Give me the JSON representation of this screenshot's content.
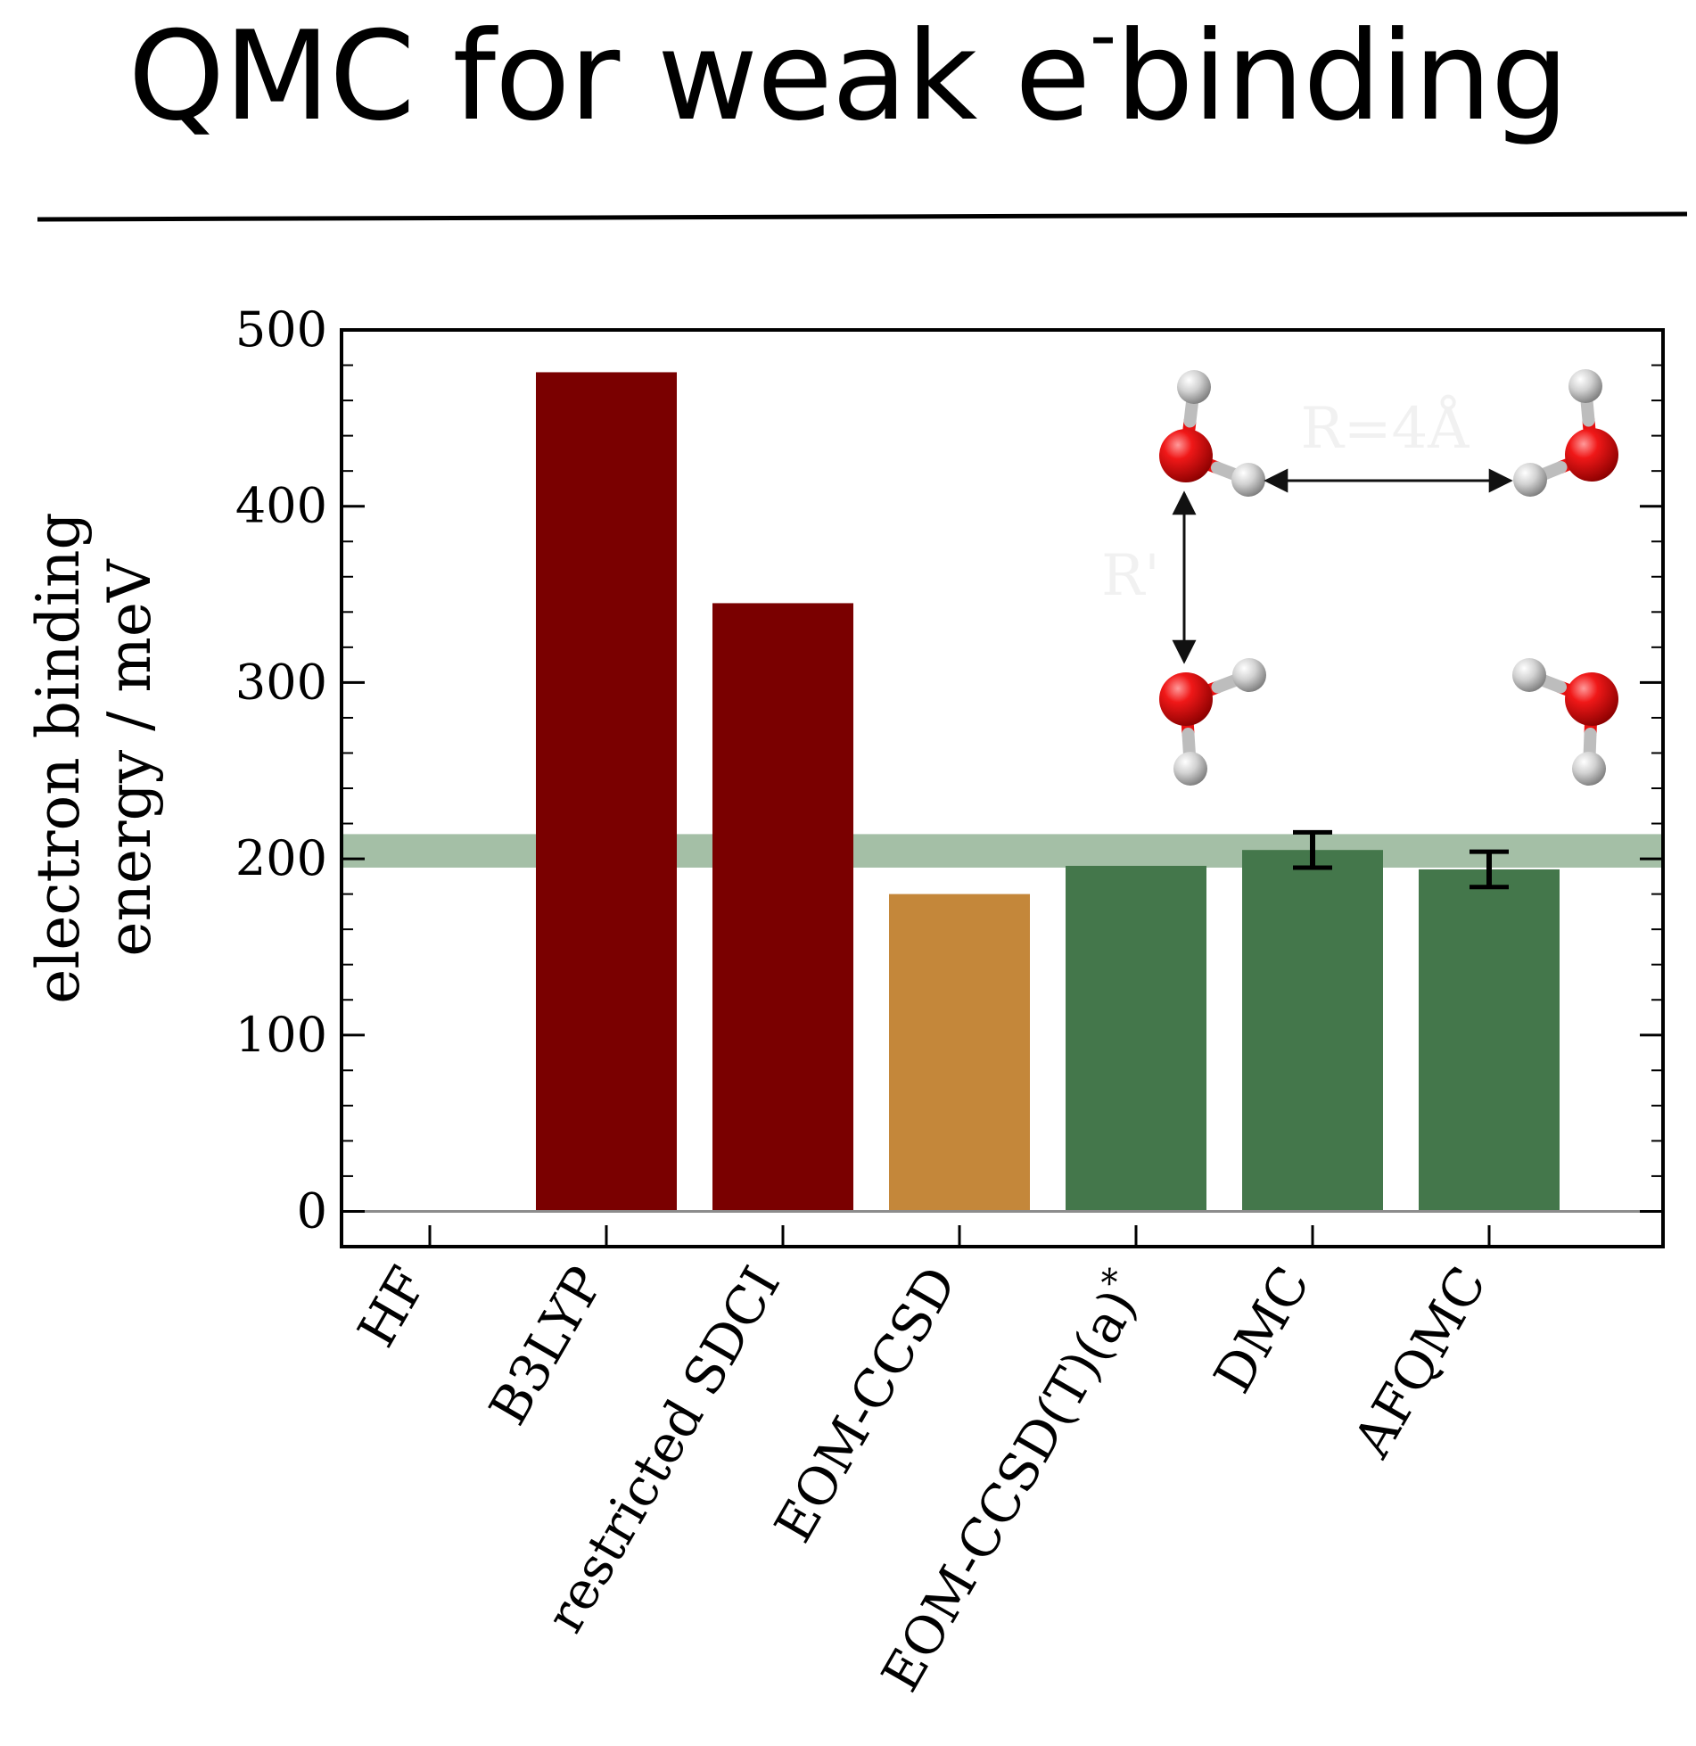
{
  "slide": {
    "title_prefix": "QMC for weak e",
    "title_sup": "-",
    "title_suffix": " binding"
  },
  "chart_data": {
    "type": "bar",
    "categories": [
      "HF",
      "B3LYP",
      "restricted SDCI",
      "EOM-CCSD",
      "EOM-CCSD(T)(a)",
      "DMC",
      "AFQMC"
    ],
    "category_suffix": {
      "EOM-CCSD(T)(a)": "*"
    },
    "values": [
      0,
      476,
      345,
      180,
      196,
      205,
      194
    ],
    "error_bars": [
      null,
      null,
      null,
      null,
      null,
      10,
      10
    ],
    "bar_colors": [
      "#7a0000",
      "#7a0000",
      "#7a0000",
      "#c4873a",
      "#44774b",
      "#44774b",
      "#44774b"
    ],
    "reference_band": {
      "low": 195,
      "high": 214,
      "color": "#a4bfa6"
    },
    "ylabel_line1": "electron binding",
    "ylabel_line2": "energy / meV",
    "ylim": [
      -20,
      500
    ],
    "yticks": [
      0,
      100,
      200,
      300,
      400,
      500
    ],
    "grid": false,
    "inset": {
      "description_icon": "water-tetramer-molecule-icon",
      "label_r": "R=4Å",
      "label_r_prime": "R'",
      "atom_colors": {
        "oxygen": "#e81010",
        "hydrogen": "#d9d9d9"
      }
    }
  }
}
